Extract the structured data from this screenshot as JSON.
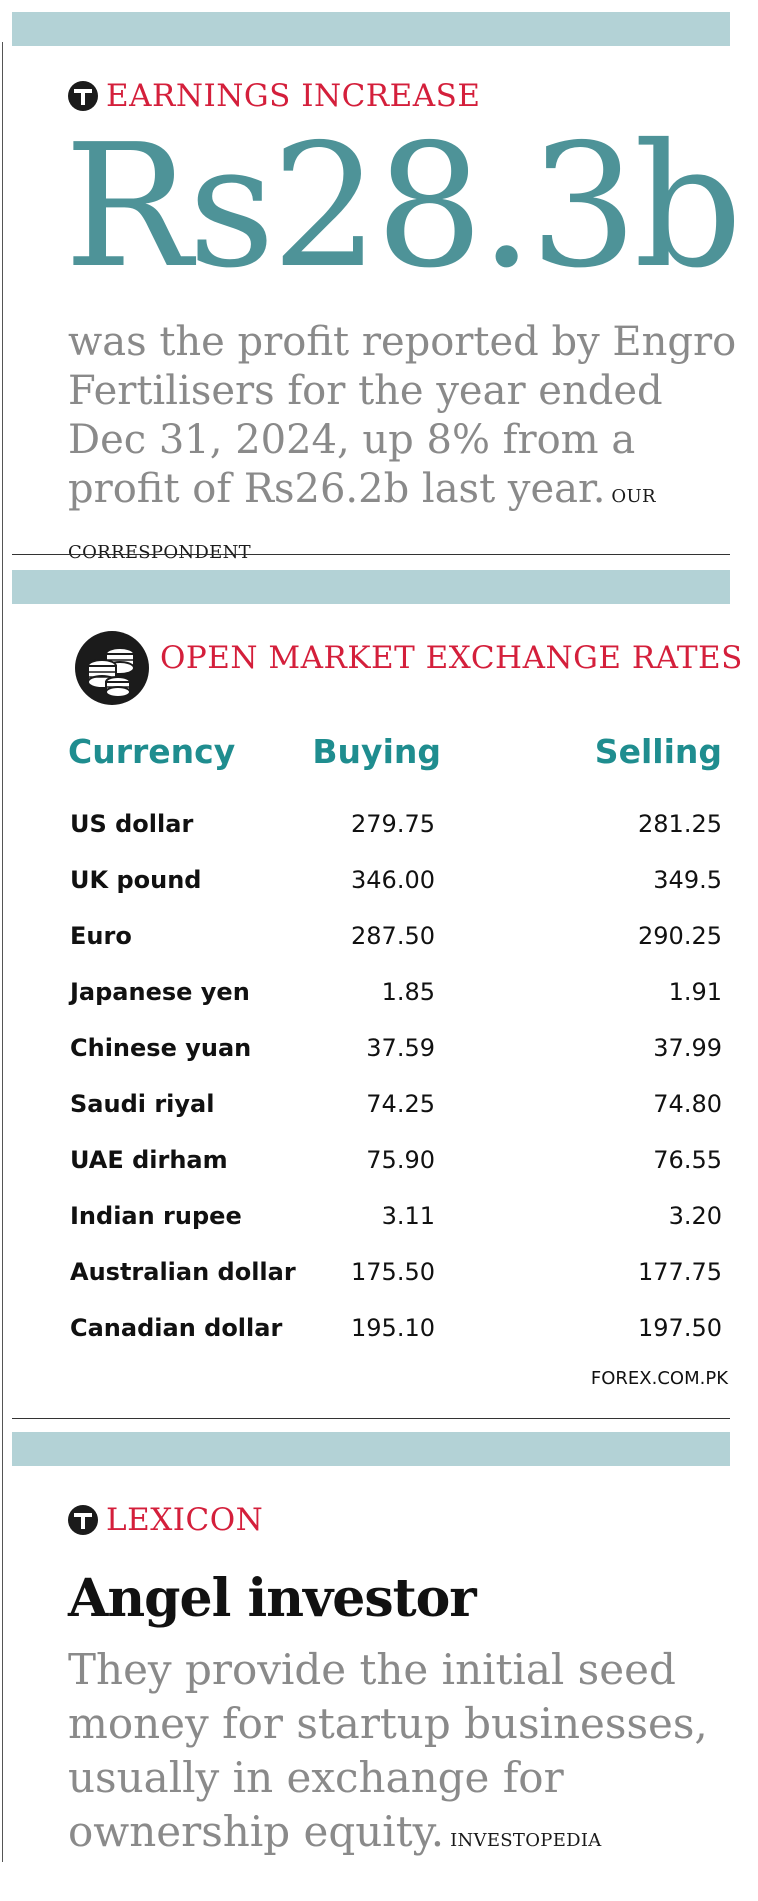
{
  "earnings": {
    "kicker": "EARNINGS INCREASE",
    "figure": "Rs28.3b",
    "description": "was the profit reported by Engro Fertilisers for the year ended Dec 31, 2024, up 8% from a profit of Rs26.2b last year.",
    "credit": "OUR CORRESPONDENT"
  },
  "rates": {
    "title": "OPEN MARKET EXCHANGE RATES",
    "headers": {
      "currency": "Currency",
      "buying": "Buying",
      "selling": "Selling"
    },
    "rows": [
      {
        "currency": "US dollar",
        "buying": "279.75",
        "selling": "281.25"
      },
      {
        "currency": "UK pound",
        "buying": "346.00",
        "selling": "349.5"
      },
      {
        "currency": "Euro",
        "buying": "287.50",
        "selling": "290.25"
      },
      {
        "currency": "Japanese yen",
        "buying": "1.85",
        "selling": "1.91"
      },
      {
        "currency": "Chinese yuan",
        "buying": "37.59",
        "selling": "37.99"
      },
      {
        "currency": "Saudi riyal",
        "buying": "74.25",
        "selling": "74.80"
      },
      {
        "currency": "UAE dirham",
        "buying": "75.90",
        "selling": "76.55"
      },
      {
        "currency": "Indian rupee",
        "buying": "3.11",
        "selling": "3.20"
      },
      {
        "currency": "Australian dollar",
        "buying": "175.50",
        "selling": "177.75"
      },
      {
        "currency": "Canadian dollar",
        "buying": "195.10",
        "selling": "197.50"
      }
    ],
    "source": "FOREX.COM.PK"
  },
  "lexicon": {
    "kicker": "LEXICON",
    "term": "Angel investor",
    "definition": "They provide the initial seed money for startup businesses, usually in exchange for ownership equity.",
    "credit": "INVESTOPEDIA"
  },
  "colors": {
    "band": "#b3d2d6",
    "accent_red": "#d41f3b",
    "accent_teal": "#4e9398",
    "header_teal": "#1f8d8f",
    "body_grey": "#8a8a8a"
  },
  "icons": {
    "section_logo": "tribune-t-logo-icon",
    "coins": "coin-stack-icon"
  }
}
